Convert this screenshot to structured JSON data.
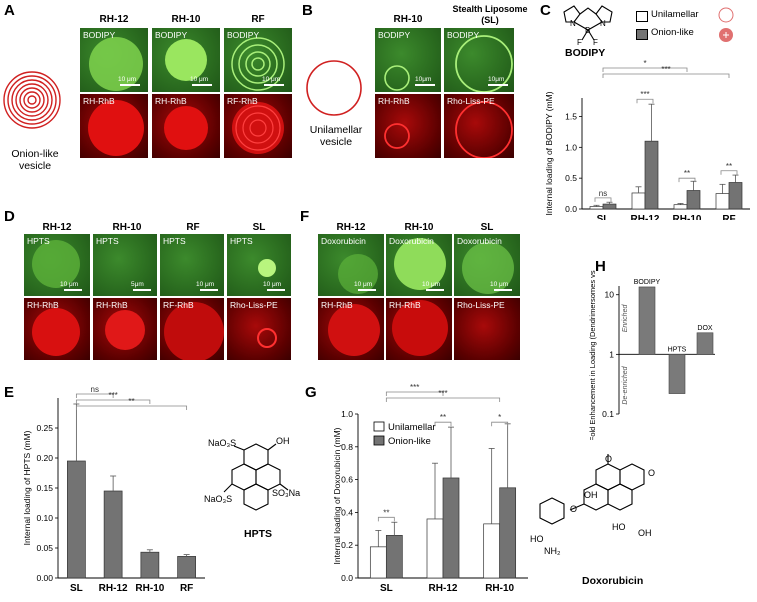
{
  "panels": {
    "A": {
      "letter": "A",
      "cols": [
        "RH-12",
        "RH-10",
        "RF"
      ],
      "vesicle_label": [
        "Onion-like",
        "vesicle"
      ],
      "top_labels": [
        "BODIPY",
        "BODIPY",
        "BODIPY"
      ],
      "bottom_labels": [
        "RH-RhB",
        "RH-RhB",
        "RF-RhB"
      ],
      "scale_text": "10 μm"
    },
    "B": {
      "letter": "B",
      "cols": [
        "RH-10",
        "Stealth Liposome",
        "(SL)"
      ],
      "vesicle_label": [
        "Unilamellar",
        "vesicle"
      ],
      "top_labels": [
        "BODIPY",
        "BODIPY"
      ],
      "bottom_labels": [
        "RH-RhB",
        "Rho-Liss-PE"
      ],
      "scale_text": "10μm"
    },
    "C": {
      "letter": "C",
      "molecule": "BODIPY",
      "legend": [
        "Unilamellar",
        "Onion-like"
      ]
    },
    "D": {
      "letter": "D",
      "cols": [
        "RH-12",
        "RH-10",
        "RF",
        "SL"
      ],
      "top_labels": [
        "HPTS",
        "HPTS",
        "HPTS",
        "HPTS"
      ],
      "bottom_labels": [
        "RH-RhB",
        "RH-RhB",
        "RF-RhB",
        "Rho-Liss-PE"
      ],
      "scales": [
        "10 μm",
        "5μm",
        "10 μm",
        "10 μm"
      ]
    },
    "E": {
      "letter": "E",
      "molecule": "HPTS"
    },
    "F": {
      "letter": "F",
      "cols": [
        "RH-12",
        "RH-10",
        "SL"
      ],
      "top_labels": [
        "Doxorubicin",
        "Doxorubicin",
        "Doxorubicin"
      ],
      "bottom_labels": [
        "RH-RhB",
        "RH-RhB",
        "Rho-Liss-PE"
      ],
      "scales": [
        "10 μm",
        "10 μm",
        "10 μm"
      ]
    },
    "G": {
      "letter": "G",
      "molecule": "Doxorubicin"
    },
    "H": {
      "letter": "H"
    }
  },
  "chart_data": [
    {
      "id": "C",
      "type": "bar",
      "ylabel": "Internal loading of BODIPY (mM)",
      "categories": [
        "SL",
        "RH-12",
        "RH-10",
        "RF"
      ],
      "ylim": [
        0,
        1.8
      ],
      "yticks": [
        "0.0",
        "0.5",
        "1.0",
        "1.5"
      ],
      "series": [
        {
          "name": "Unilamellar",
          "values": [
            0.04,
            0.26,
            0.07,
            0.25
          ],
          "err": [
            0.02,
            0.1,
            0.02,
            0.15
          ]
        },
        {
          "name": "Onion-like",
          "values": [
            0.08,
            1.1,
            0.3,
            0.43
          ],
          "err": [
            0.03,
            0.6,
            0.15,
            0.12
          ]
        }
      ],
      "annotations": [
        "ns",
        "***",
        "**",
        "**",
        "*",
        "***"
      ]
    },
    {
      "id": "E",
      "type": "bar",
      "ylabel": "Internal loading of HPTS (mM)",
      "categories": [
        "SL",
        "RH-12",
        "RH-10",
        "RF"
      ],
      "ylim": [
        0,
        0.3
      ],
      "yticks": [
        "0.00",
        "0.05",
        "0.10",
        "0.15",
        "0.20",
        "0.25"
      ],
      "values": [
        0.195,
        0.145,
        0.043,
        0.036
      ],
      "err": [
        0.095,
        0.025,
        0.004,
        0.003
      ],
      "annotations": [
        "ns",
        "***",
        "**"
      ]
    },
    {
      "id": "G",
      "type": "bar",
      "ylabel": "Internal loading of Doxorubicin (mM)",
      "categories": [
        "SL",
        "RH-12",
        "RH-10"
      ],
      "ylim": [
        0,
        1.0
      ],
      "yticks": [
        "0.0",
        "0.2",
        "0.4",
        "0.6",
        "0.8",
        "1.0"
      ],
      "series": [
        {
          "name": "Unilamellar",
          "values": [
            0.19,
            0.36,
            0.33
          ],
          "err": [
            0.1,
            0.34,
            0.46
          ]
        },
        {
          "name": "Onion-like",
          "values": [
            0.26,
            0.61,
            0.55
          ],
          "err": [
            0.08,
            0.31,
            0.39
          ]
        }
      ],
      "annotations": [
        "**",
        "**",
        "*",
        "***",
        "***"
      ]
    },
    {
      "id": "H",
      "type": "bar",
      "ylabel": "Max Fold Enhancement in Loading (Dendrimersomes vs. SL)",
      "scale": "log",
      "ylim": [
        0.1,
        14
      ],
      "yticks": [
        "10",
        "1",
        "0.1"
      ],
      "categories": [
        "BODIPY",
        "HPTS",
        "DOX"
      ],
      "values": [
        13.5,
        0.22,
        2.3
      ],
      "region_labels": [
        "Enriched",
        "De-enriched"
      ]
    }
  ]
}
